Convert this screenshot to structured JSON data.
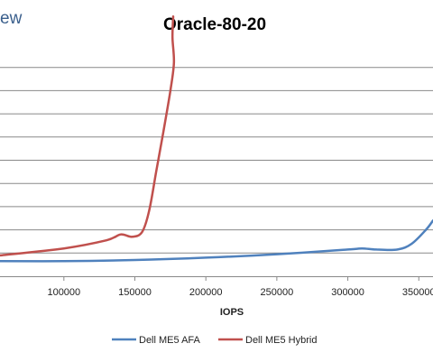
{
  "brand": {
    "partial_text": "ew"
  },
  "chart_data": {
    "type": "line",
    "title": "Oracle-80-20",
    "xlabel": "IOPS",
    "ylabel": "",
    "xlim": [
      55000,
      360000
    ],
    "ylim": [
      0,
      10
    ],
    "x_ticks": [
      100000,
      150000,
      200000,
      250000,
      300000,
      350000
    ],
    "x_tick_labels": [
      "100000",
      "150000",
      "200000",
      "250000",
      "300000",
      "350000"
    ],
    "y_gridlines": [
      1,
      2,
      3,
      4,
      5,
      6,
      7,
      8,
      9
    ],
    "grid": "horizontal",
    "legend_position": "bottom",
    "series": [
      {
        "name": "Dell ME5 AFA",
        "color": "#4f81bd",
        "x": [
          55000,
          100000,
          150000,
          200000,
          250000,
          300000,
          310000,
          320000,
          335000,
          345000,
          355000,
          360000
        ],
        "y": [
          0.65,
          0.65,
          0.7,
          0.8,
          0.95,
          1.15,
          1.2,
          1.15,
          1.15,
          1.4,
          2.0,
          2.4
        ]
      },
      {
        "name": "Dell ME5 Hybrid",
        "color": "#c0504d",
        "x": [
          55000,
          100000,
          130000,
          140000,
          148000,
          155000,
          160000,
          165000,
          170000,
          175000,
          177500,
          176500,
          177000
        ],
        "y": [
          0.9,
          1.2,
          1.55,
          1.8,
          1.7,
          1.9,
          2.8,
          4.5,
          6.2,
          8.0,
          9.2,
          10.3,
          11.2
        ]
      }
    ]
  }
}
